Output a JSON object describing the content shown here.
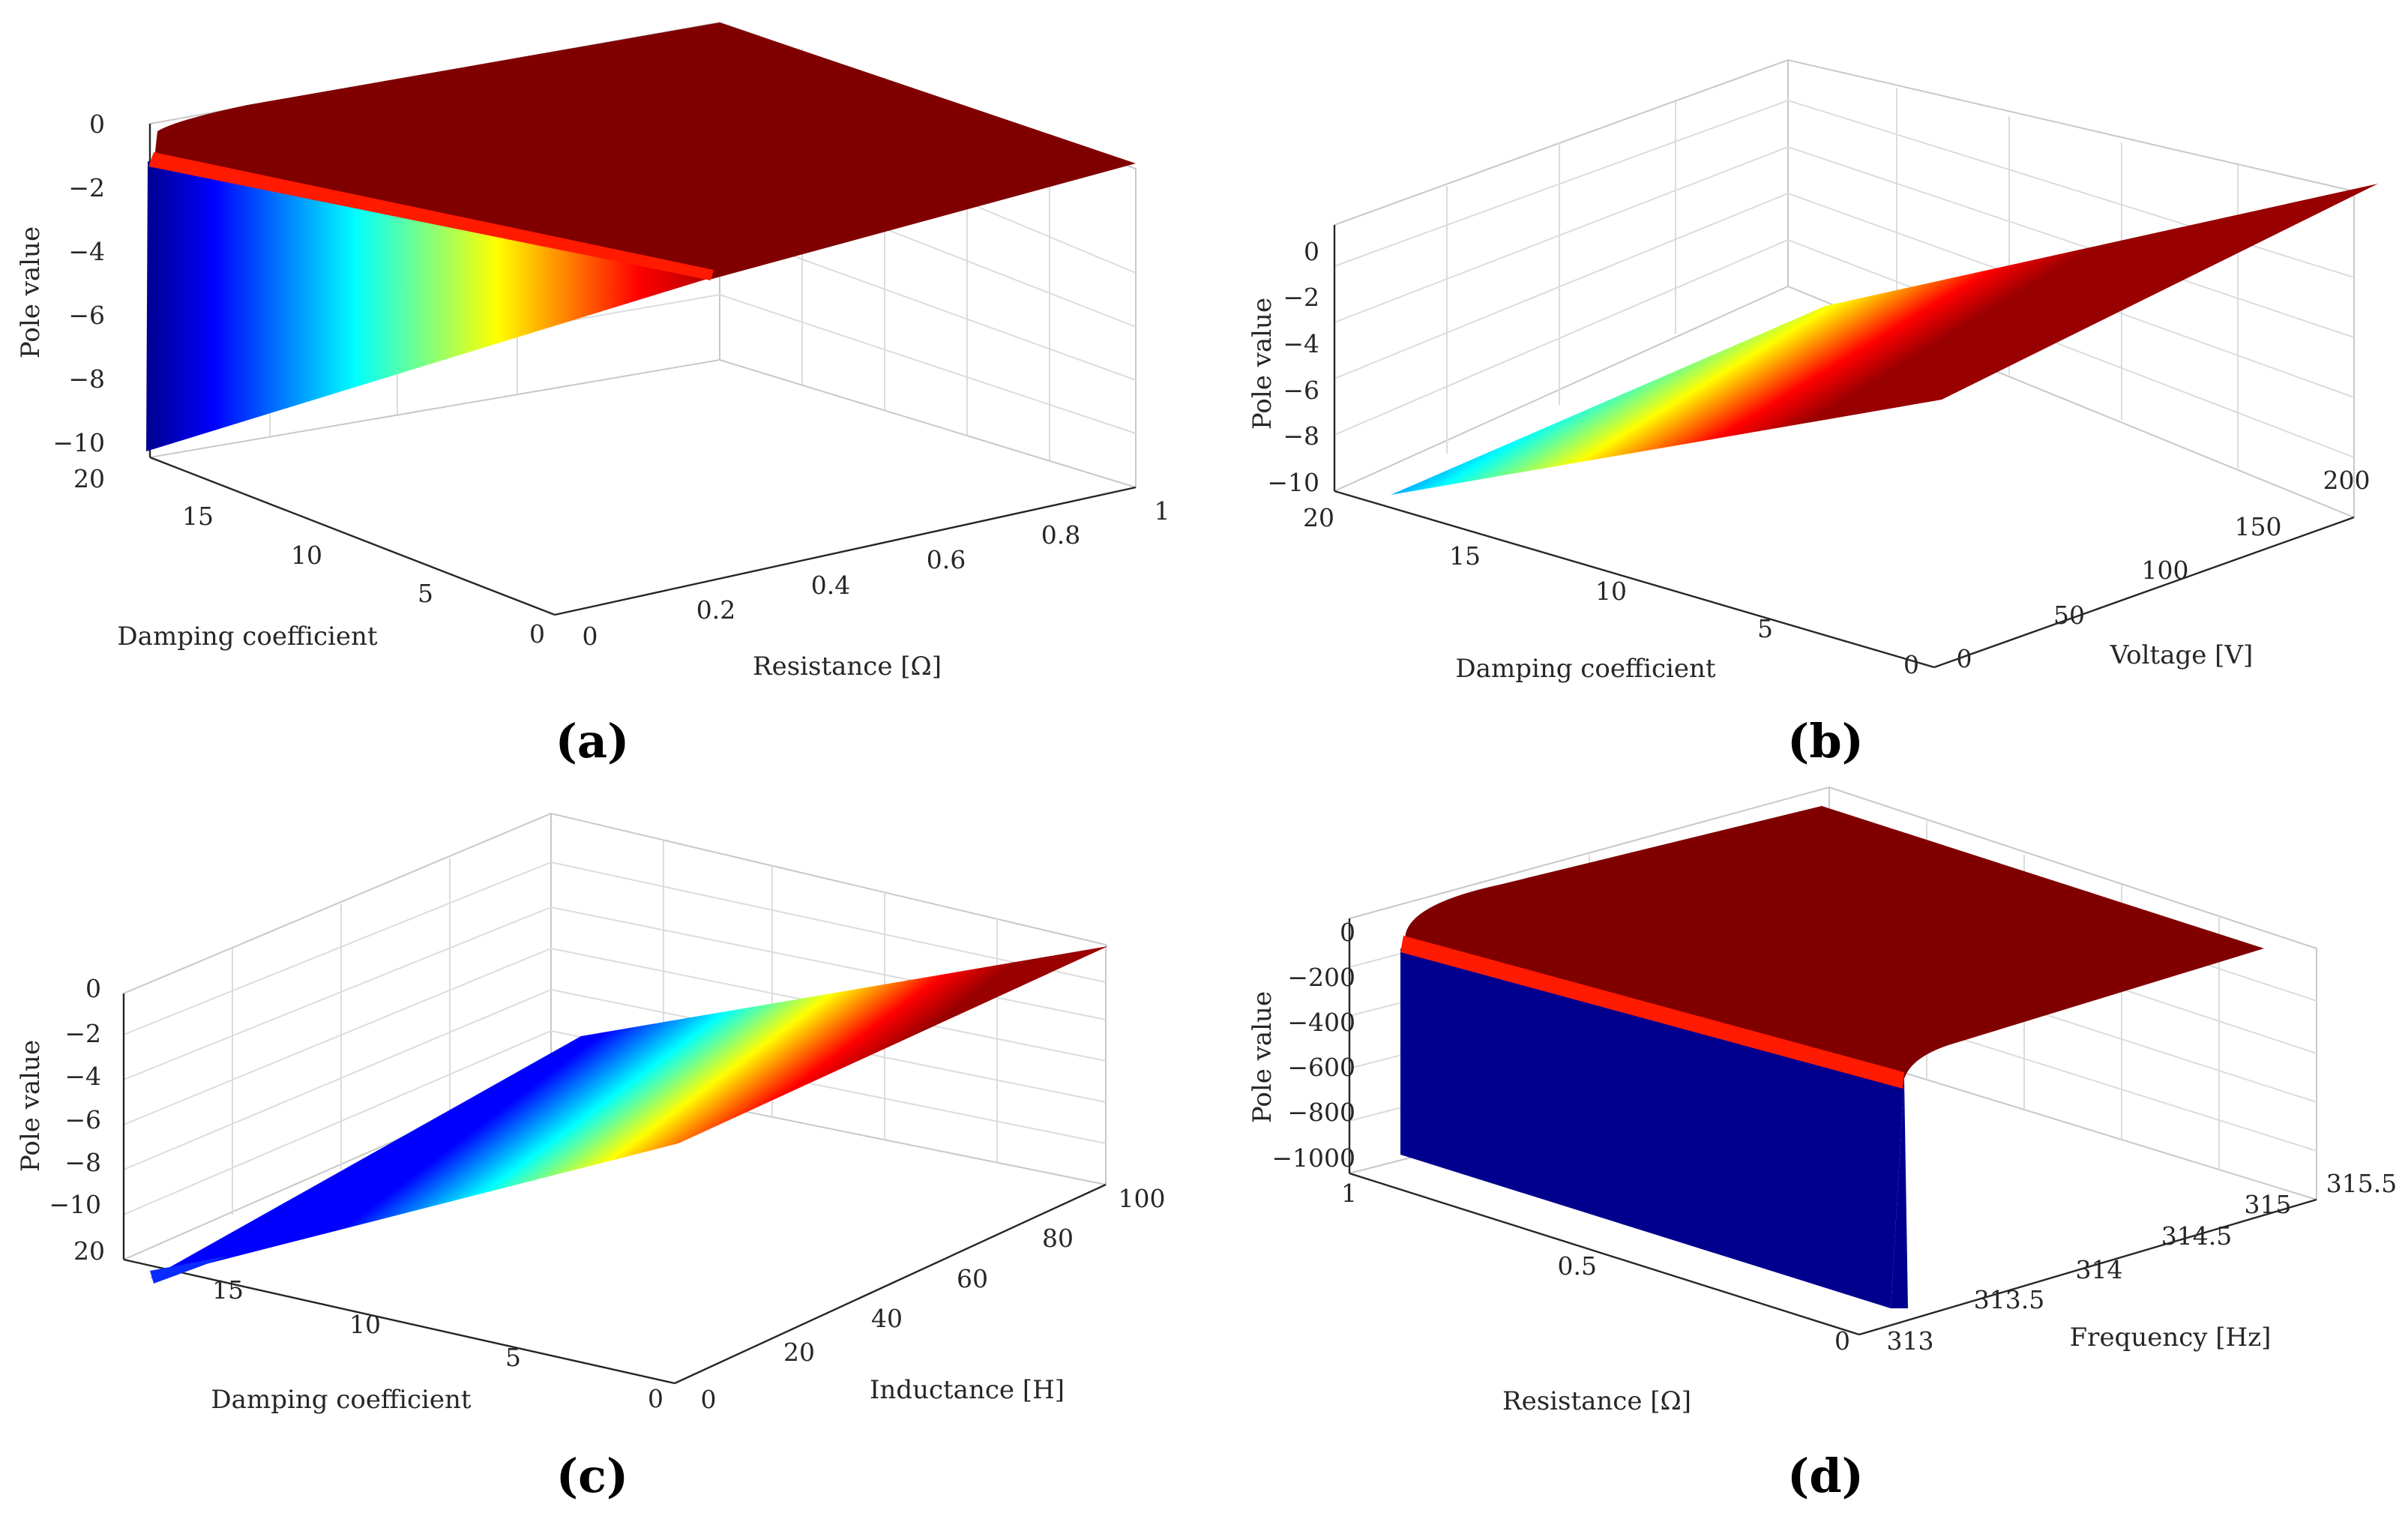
{
  "chart_data": [
    {
      "type": "surface",
      "panel": "(a)",
      "xlabel": "Damping coefficient",
      "ylabel": "Resistance [Ω]",
      "zlabel": "Pole value",
      "xlim": [
        0,
        20
      ],
      "ylim": [
        0,
        1
      ],
      "zlim": [
        -10,
        0
      ],
      "xticks": [
        "0",
        "5",
        "10",
        "15",
        "20"
      ],
      "yticks": [
        "0",
        "0.2",
        "0.4",
        "0.6",
        "0.8",
        "1"
      ],
      "zticks": [
        "−10",
        "−8",
        "−6",
        "−4",
        "−2",
        "0"
      ],
      "colormap": "jet",
      "description_of_shape": "pole ≈ 0 everywhere except a sharp drop to about −10 near resistance 0 at damping 20",
      "corner_values": [
        {
          "x": 20,
          "y": 0,
          "z": -10
        },
        {
          "x": 20,
          "y": 1,
          "z": 0
        },
        {
          "x": 0,
          "y": 1,
          "z": 0
        },
        {
          "x": 0,
          "y": 0,
          "z": -1
        }
      ]
    },
    {
      "type": "surface",
      "panel": "(b)",
      "xlabel": "Damping coefficient",
      "ylabel": "Voltage [V]",
      "zlabel": "Pole value",
      "xlim": [
        0,
        20
      ],
      "ylim": [
        0,
        220
      ],
      "zlim": [
        -10,
        0
      ],
      "xticks": [
        "0",
        "5",
        "10",
        "15",
        "20"
      ],
      "yticks": [
        "0",
        "50",
        "100",
        "150",
        "200"
      ],
      "zticks": [
        "−10",
        "−8",
        "−6",
        "−4",
        "−2",
        "0"
      ],
      "colormap": "jet",
      "description_of_shape": "pole varies linearly with damping coefficient from about −10 at 20 to about 0 at 0, independent of voltage",
      "corner_values": [
        {
          "x": 20,
          "y": 0,
          "z": -10
        },
        {
          "x": 20,
          "y": 220,
          "z": -10
        },
        {
          "x": 0,
          "y": 220,
          "z": 0
        },
        {
          "x": 0,
          "y": 0,
          "z": 0
        }
      ]
    },
    {
      "type": "surface",
      "panel": "(c)",
      "xlabel": "Damping coefficient",
      "ylabel": "Inductance [H]",
      "zlabel": "Pole value",
      "xlim": [
        0,
        20
      ],
      "ylim": [
        0,
        100
      ],
      "zlim": [
        -11,
        0
      ],
      "xticks": [
        "0",
        "5",
        "10",
        "15",
        "20"
      ],
      "yticks": [
        "0",
        "20",
        "40",
        "60",
        "80",
        "100"
      ],
      "zticks": [
        "−10",
        "−8",
        "−6",
        "−4",
        "−2",
        "0"
      ],
      "colormap": "jet",
      "description_of_shape": "pole varies linearly with damping coefficient from about −10 at 20 to about 0 at 0; slight extra drop near inductance 0",
      "corner_values": [
        {
          "x": 20,
          "y": 0,
          "z": -11
        },
        {
          "x": 20,
          "y": 100,
          "z": -10
        },
        {
          "x": 0,
          "y": 100,
          "z": 0
        },
        {
          "x": 0,
          "y": 0,
          "z": 0
        }
      ]
    },
    {
      "type": "surface",
      "panel": "(d)",
      "xlabel": "Resistance [Ω]",
      "ylabel": "Frequency [Hz]",
      "zlabel": "Pole value",
      "xlim": [
        0,
        1
      ],
      "ylim": [
        313,
        315.5
      ],
      "zlim": [
        -1000,
        0
      ],
      "xticks": [
        "0",
        "0.5",
        "1"
      ],
      "yticks": [
        "313",
        "313.5",
        "314",
        "314.5",
        "315",
        "315.5"
      ],
      "zticks": [
        "−1000",
        "−800",
        "−600",
        "−400",
        "−200",
        "0"
      ],
      "colormap": "jet",
      "description_of_shape": "pole ≈ 0 everywhere except a sharp drop to about −1000 along frequency 313",
      "corner_values": [
        {
          "x": 1,
          "y": 313,
          "z": -1000
        },
        {
          "x": 0,
          "y": 313,
          "z": -1000
        },
        {
          "x": 1,
          "y": 315.5,
          "z": 0
        },
        {
          "x": 0,
          "y": 315.5,
          "z": 0
        }
      ]
    }
  ],
  "colors": {
    "jet_dark_blue": "#00008f",
    "jet_blue": "#0000ff",
    "jet_cyan": "#00ffff",
    "jet_yellow": "#ffff00",
    "jet_red": "#ff0000",
    "jet_dark_red": "#800000"
  }
}
